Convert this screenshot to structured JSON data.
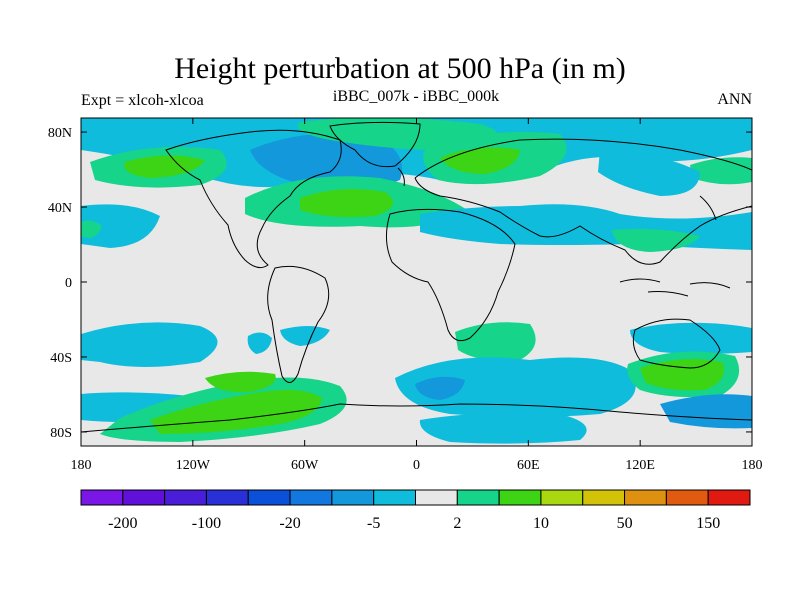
{
  "title": "Height perturbation at 500 hPa (in m)",
  "left_string": "Expt = xlcoh-xlcoa",
  "center_string": "iBBC_007k - iBBC_000k",
  "right_string": "ANN",
  "lon_ticks": [
    "180",
    "120W",
    "60W",
    "0",
    "60E",
    "120E",
    "180"
  ],
  "lat_ticks": [
    "80N",
    "40N",
    "0",
    "40S",
    "80S"
  ],
  "colorbar": {
    "colors": [
      "#7a16e6",
      "#6010d8",
      "#4a1ed8",
      "#2a30d8",
      "#0a50d8",
      "#1278e0",
      "#1398dc",
      "#10bcdc",
      "#e8e8e8",
      "#16d48a",
      "#3cd414",
      "#aad810",
      "#d2c208",
      "#de9010",
      "#e05a10",
      "#e01a10"
    ],
    "labels": [
      "-200",
      "-100",
      "-20",
      "-5",
      "2",
      "10",
      "50",
      "150"
    ]
  },
  "map_colors": {
    "background": "#e8e8e8",
    "light_negative": "#10bcdc",
    "mid_negative": "#1398dc",
    "light_positive": "#16d48a",
    "mid_positive": "#3cd414"
  }
}
